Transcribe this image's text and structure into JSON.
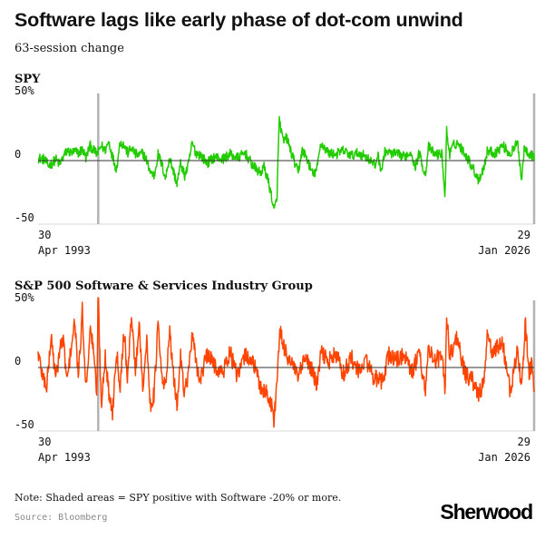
{
  "title": "Software lags like early phase of dot-com unwind",
  "subtitle": "63-session change",
  "note": "Note: Shaded areas = SPY positive with Software -20% or more.",
  "source": "Source: Bloomberg",
  "logo": "Sherwood",
  "colors": {
    "spy": "#22cc00",
    "software": "#ff4400",
    "shade": "#b3b3b3",
    "axis": "#333333",
    "grid": "#d9d9d9"
  },
  "chart_data": [
    {
      "type": "line",
      "panel_title": "SPY",
      "x_start_label": [
        "30",
        "Apr 1993"
      ],
      "x_end_label": [
        "29",
        "Jan 2026"
      ],
      "x_start": 1993.33,
      "x_end": 2026.08,
      "ylim": [
        -50,
        50
      ],
      "yticks": [
        50,
        0,
        -50
      ],
      "ytick_labels": [
        "50%",
        "0",
        "-50"
      ],
      "shaded_dates": [
        1997.3,
        2026.08
      ],
      "series": [
        {
          "x": [
            1993.33,
            1993.75,
            1994.0,
            1994.25,
            1994.5,
            1994.75,
            1995.0,
            1995.25,
            1995.5,
            1995.75,
            1996.0,
            1996.25,
            1996.5,
            1996.75,
            1997.0,
            1997.25,
            1997.5,
            1997.75,
            1998.0,
            1998.25,
            1998.5,
            1998.75,
            1999.0,
            1999.25,
            1999.5,
            1999.75,
            2000.0,
            2000.25,
            2000.5,
            2000.75,
            2001.0,
            2001.25,
            2001.5,
            2001.75,
            2002.0,
            2002.25,
            2002.5,
            2002.75,
            2003.0,
            2003.25,
            2003.5,
            2003.75,
            2004.0,
            2004.5,
            2005.0,
            2005.5,
            2006.0,
            2006.5,
            2007.0,
            2007.5,
            2008.0,
            2008.25,
            2008.5,
            2008.75,
            2008.9,
            2009.1,
            2009.25,
            2009.5,
            2009.75,
            2010.0,
            2010.5,
            2010.75,
            2011.0,
            2011.5,
            2011.75,
            2012.0,
            2012.5,
            2013.0,
            2013.5,
            2014.0,
            2014.5,
            2015.0,
            2015.6,
            2015.75,
            2016.0,
            2016.25,
            2016.5,
            2017.0,
            2017.5,
            2018.0,
            2018.2,
            2018.5,
            2018.9,
            2019.1,
            2019.5,
            2020.0,
            2020.2,
            2020.3,
            2020.5,
            2020.75,
            2021.0,
            2021.5,
            2022.0,
            2022.4,
            2022.75,
            2023.0,
            2023.5,
            2024.0,
            2024.5,
            2025.0,
            2025.25,
            2025.45,
            2025.75,
            2026.08
          ],
          "values": [
            2,
            1,
            -4,
            -2,
            1,
            -3,
            3,
            8,
            6,
            7,
            6,
            9,
            2,
            12,
            8,
            5,
            12,
            8,
            15,
            3,
            -7,
            15,
            12,
            6,
            10,
            5,
            4,
            6,
            0,
            -9,
            -12,
            5,
            -3,
            -14,
            3,
            -8,
            -18,
            -2,
            -12,
            -4,
            14,
            6,
            5,
            -2,
            3,
            1,
            5,
            2,
            6,
            -4,
            -10,
            -5,
            -15,
            -28,
            -40,
            -30,
            33,
            15,
            18,
            8,
            -10,
            8,
            4,
            -12,
            -6,
            14,
            6,
            5,
            8,
            4,
            6,
            3,
            -4,
            5,
            -8,
            8,
            6,
            5,
            3,
            7,
            -6,
            6,
            -12,
            11,
            5,
            5,
            -30,
            24,
            5,
            12,
            14,
            6,
            -5,
            -15,
            -6,
            8,
            6,
            12,
            5,
            14,
            -15,
            12,
            5,
            3
          ]
        }
      ]
    },
    {
      "type": "line",
      "panel_title": "S&P 500 Software & Services Industry Group",
      "x_start_label": [
        "30",
        "Apr 1993"
      ],
      "x_end_label": [
        "29",
        "Jan 2026"
      ],
      "x_start": 1993.33,
      "x_end": 2026.08,
      "ylim": [
        -50,
        50
      ],
      "yticks": [
        50,
        0,
        -50
      ],
      "ytick_labels": [
        "50%",
        "0",
        "-50"
      ],
      "shaded_dates": [
        1997.3,
        2026.08
      ],
      "series": [
        {
          "x": [
            1993.33,
            1993.6,
            1993.9,
            1994.2,
            1994.5,
            1994.8,
            1995.0,
            1995.25,
            1995.5,
            1995.75,
            1996.0,
            1996.25,
            1996.5,
            1996.75,
            1997.0,
            1997.2,
            1997.3,
            1997.5,
            1997.75,
            1998.0,
            1998.25,
            1998.5,
            1998.75,
            1999.0,
            1999.25,
            1999.5,
            1999.75,
            2000.0,
            2000.25,
            2000.5,
            2000.75,
            2001.0,
            2001.25,
            2001.5,
            2001.75,
            2002.0,
            2002.25,
            2002.5,
            2002.75,
            2003.0,
            2003.25,
            2003.5,
            2003.75,
            2004.0,
            2004.5,
            2005.0,
            2005.5,
            2006.0,
            2006.5,
            2007.0,
            2007.5,
            2008.0,
            2008.4,
            2008.75,
            2008.9,
            2009.1,
            2009.3,
            2009.5,
            2009.75,
            2010.0,
            2010.5,
            2011.0,
            2011.5,
            2011.75,
            2012.0,
            2012.5,
            2013.0,
            2013.5,
            2014.0,
            2014.5,
            2015.0,
            2015.5,
            2016.0,
            2016.5,
            2017.0,
            2017.5,
            2018.0,
            2018.5,
            2018.9,
            2019.1,
            2019.5,
            2020.0,
            2020.2,
            2020.3,
            2020.5,
            2020.75,
            2021.0,
            2021.5,
            2022.0,
            2022.4,
            2022.75,
            2023.0,
            2023.3,
            2023.6,
            2024.0,
            2024.5,
            2025.0,
            2025.25,
            2025.5,
            2025.75,
            2025.95,
            2026.08
          ],
          "values": [
            12,
            -5,
            -15,
            25,
            -10,
            18,
            20,
            -12,
            15,
            35,
            -8,
            45,
            -18,
            30,
            15,
            -25,
            58,
            -30,
            10,
            -20,
            -35,
            15,
            -15,
            30,
            -10,
            45,
            -5,
            35,
            -15,
            20,
            -30,
            -20,
            35,
            -10,
            -15,
            30,
            -5,
            -30,
            10,
            -20,
            -5,
            25,
            5,
            -10,
            10,
            2,
            -5,
            12,
            -8,
            10,
            5,
            -15,
            -20,
            -30,
            -42,
            -10,
            28,
            18,
            10,
            5,
            -8,
            8,
            -5,
            -15,
            12,
            5,
            10,
            -5,
            8,
            -4,
            6,
            -8,
            -12,
            10,
            6,
            10,
            -5,
            12,
            -18,
            15,
            5,
            10,
            -22,
            45,
            10,
            15,
            25,
            -5,
            -10,
            -22,
            -12,
            25,
            12,
            15,
            20,
            -20,
            15,
            -18,
            35,
            -5,
            5,
            -22
          ]
        }
      ]
    }
  ]
}
